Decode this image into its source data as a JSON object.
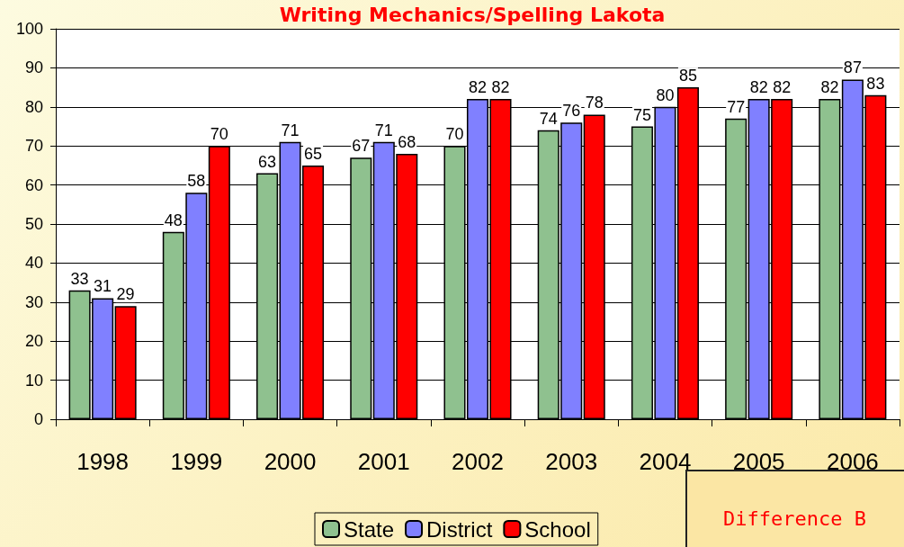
{
  "chart_data": {
    "type": "bar",
    "title": "Writing Mechanics/Spelling Lakota",
    "categories": [
      "1998",
      "1999",
      "2000",
      "2001",
      "2002",
      "2003",
      "2004",
      "2005",
      "2006"
    ],
    "series": [
      {
        "name": "State",
        "color": "#8fc18f",
        "values": [
          33,
          48,
          63,
          67,
          70,
          74,
          75,
          77,
          82
        ]
      },
      {
        "name": "District",
        "color": "#8080ff",
        "values": [
          31,
          58,
          71,
          71,
          82,
          76,
          80,
          82,
          87
        ]
      },
      {
        "name": "School",
        "color": "#ff0000",
        "values": [
          29,
          70,
          65,
          68,
          82,
          78,
          85,
          82,
          83
        ]
      }
    ],
    "ylim": [
      0,
      100
    ],
    "yticks": [
      0,
      10,
      20,
      30,
      40,
      50,
      60,
      70,
      80,
      90,
      100
    ],
    "grid": "y",
    "legend": "bottom",
    "data_labels": true,
    "annotations": [
      "Difference B"
    ]
  }
}
